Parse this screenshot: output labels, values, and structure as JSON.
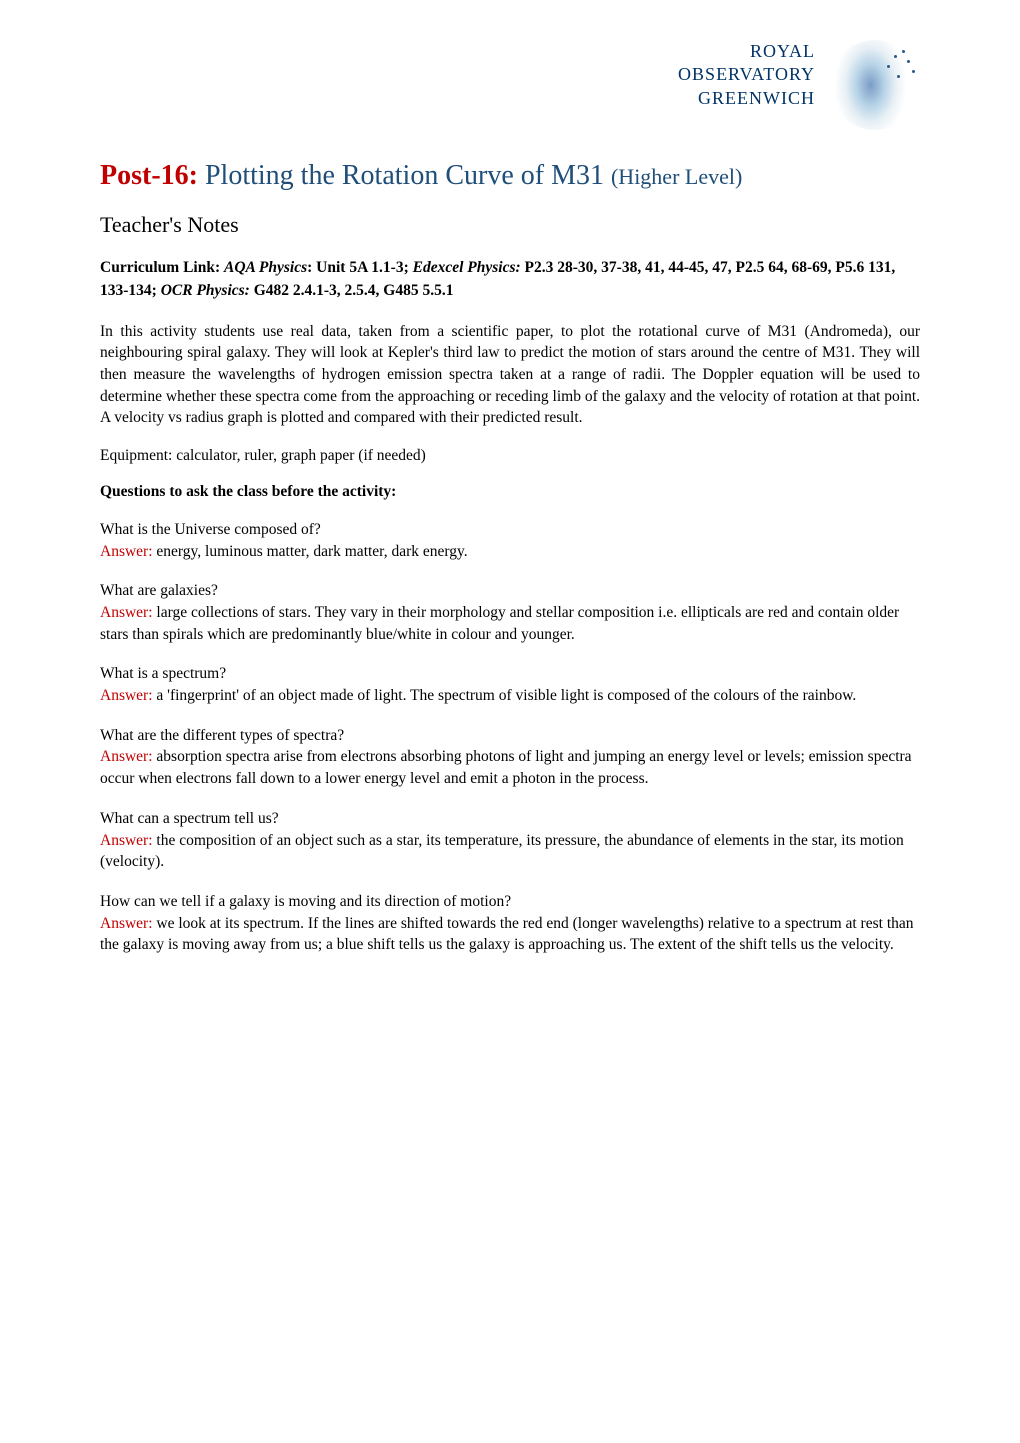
{
  "logo": {
    "line1": "ROYAL",
    "line2": "OBSERVATORY",
    "line3": "GREENWICH"
  },
  "title": {
    "prefix": "Post-16:",
    "main": "Plotting the Rotation Curve of M31",
    "suffix": "(Higher Level)"
  },
  "subtitle": "Teacher's Notes",
  "curriculum": {
    "label": "Curriculum Link:",
    "aqa_label": "AQA Physics",
    "aqa_text": ": Unit 5A 1.1-3;",
    "edexcel_label": "Edexcel Physics:",
    "edexcel_text": "P2.3 28-30, 37-38, 41, 44-45, 47, P2.5 64, 68-69, P5.6 131, 133-134;",
    "ocr_label": "OCR Physics:",
    "ocr_text": "G482 2.4.1-3, 2.5.4, G485 5.5.1"
  },
  "intro": "In this activity students use real data, taken from a scientific paper, to plot the rotational curve of M31 (Andromeda), our neighbouring spiral galaxy. They will look at Kepler's third law to predict the motion of stars around the centre of M31. They will then measure the wavelengths of hydrogen emission spectra taken at a range of radii. The Doppler equation will be used to determine whether these spectra come from the approaching or receding limb of the galaxy and the velocity of rotation at that point. A velocity vs radius graph is plotted and compared with their predicted result.",
  "equipment": "Equipment: calculator, ruler, graph paper (if needed)",
  "section_heading": "Questions to ask the class before the activity:",
  "qa": [
    {
      "question": "What is the Universe composed of?",
      "answer_label": "Answer:",
      "answer_text": "  energy, luminous matter, dark matter, dark energy."
    },
    {
      "question": "What are galaxies?",
      "answer_label": "Answer:",
      "answer_text": "  large collections of stars. They vary in their morphology and stellar composition   i.e. ellipticals are red and contain older stars than spirals which are predominantly blue/white in colour and younger."
    },
    {
      "question": "What is a spectrum?",
      "answer_label": "Answer:",
      "answer_text": " a 'fingerprint' of an object made of light.  The spectrum of visible light is composed of the colours of the rainbow."
    },
    {
      "question": "What are the different types of spectra?",
      "answer_label": "Answer:",
      "answer_text": " absorption spectra arise from electrons absorbing photons of light and jumping an energy level or levels; emission spectra occur when electrons fall down to a lower energy level and emit a photon in the process."
    },
    {
      "question": "What can a spectrum tell us?",
      "answer_label": "Answer:",
      "answer_text": " the composition of an object such as a star, its temperature, its pressure, the abundance of elements in the star, its motion (velocity)."
    },
    {
      "question": "How can we tell if a galaxy is moving and its direction of motion?",
      "answer_label": "Answer:",
      "answer_text": " we look at its spectrum. If the lines are shifted towards the red end (longer wavelengths) relative to a spectrum at rest than the galaxy is moving away from us; a blue shift tells us the galaxy is approaching us. The extent of the shift tells us the velocity."
    }
  ],
  "colors": {
    "title_red": "#c00000",
    "title_blue": "#1f4e79",
    "answer_red": "#c00000",
    "logo_navy": "#003366",
    "text_black": "#000000",
    "background": "#ffffff"
  },
  "typography": {
    "body_font": "Georgia, Times New Roman, serif",
    "h1_size": 28,
    "h2_size": 22,
    "body_size": 15.5
  }
}
